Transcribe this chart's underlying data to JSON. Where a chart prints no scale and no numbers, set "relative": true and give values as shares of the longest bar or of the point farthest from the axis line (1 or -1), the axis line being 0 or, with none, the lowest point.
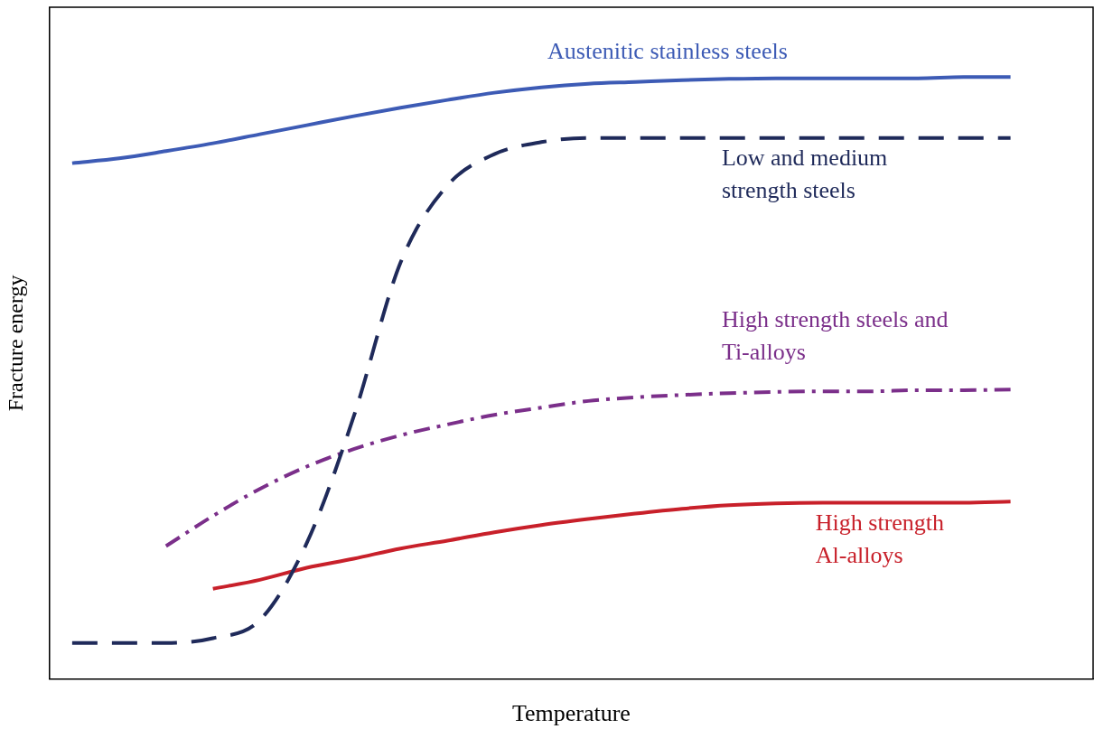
{
  "chart_data": {
    "type": "line",
    "relative": true,
    "xlabel": "Temperature",
    "ylabel": "Fracture energy",
    "grid": false,
    "legend": false,
    "marker": "none",
    "categories": [
      null,
      null,
      null,
      null,
      null,
      null,
      null,
      null,
      null,
      null,
      null,
      null,
      null,
      null,
      null,
      null,
      null,
      null,
      null,
      null,
      null
    ],
    "series": [
      {
        "name": "Austenitic stainless steels",
        "color": "#3d5bb5",
        "line_style": "solid",
        "values": [
          0.857,
          0.865,
          0.877,
          0.89,
          0.905,
          0.92,
          0.935,
          0.949,
          0.962,
          0.974,
          0.983,
          0.989,
          0.992,
          0.995,
          0.997,
          0.998,
          0.998,
          0.998,
          0.998,
          1,
          1
        ]
      },
      {
        "name": "Low and medium strength steels",
        "color": "#1f2a5a",
        "line_style": "dashed",
        "values": [
          0.06,
          0.06,
          0.06,
          0.068,
          0.098,
          0.226,
          0.436,
          0.692,
          0.82,
          0.872,
          0.892,
          0.899,
          0.899,
          0.899,
          0.899,
          0.899,
          0.899,
          0.899,
          0.899,
          0.899,
          0.899
        ]
      },
      {
        "name": "High strength steels and Ti-alloys",
        "color": "#7b2f8a",
        "line_style": "dashdot",
        "values": [
          null,
          null,
          0.221,
          0.271,
          0.316,
          0.353,
          0.382,
          0.405,
          0.423,
          0.439,
          0.451,
          0.462,
          0.468,
          0.472,
          0.475,
          0.477,
          0.478,
          0.478,
          0.48,
          0.48,
          0.481
        ]
      },
      {
        "name": "High strength Al-alloys",
        "color": "#c8202a",
        "line_style": "solid",
        "values": [
          null,
          null,
          null,
          0.15,
          0.165,
          0.185,
          0.2,
          0.217,
          0.23,
          0.244,
          0.256,
          0.266,
          0.275,
          0.283,
          0.289,
          0.292,
          0.293,
          0.293,
          0.293,
          0.293,
          0.295
        ]
      }
    ]
  }
}
